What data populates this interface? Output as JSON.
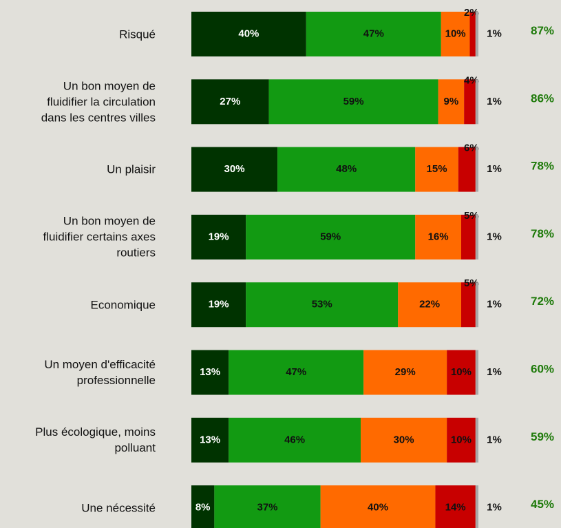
{
  "chart_data": {
    "type": "stacked-bar-horizontal",
    "categories": [
      "Risqué",
      "Un bon moyen de fluidifier la circulation dans les centres villes",
      "Un plaisir",
      "Un bon moyen de fluidifier certains axes routiers",
      "Economique",
      "Un moyen d'efficacité professionnelle",
      "Plus écologique, moins polluant",
      "Une nécessité"
    ],
    "xlim": [
      0,
      100
    ],
    "series": [
      {
        "color": "#003300",
        "values": [
          40,
          27,
          30,
          19,
          19,
          13,
          13,
          8
        ],
        "value_labels": [
          "40%",
          "27%",
          "30%",
          "19%",
          "19%",
          "13%",
          "13%",
          "8%"
        ]
      },
      {
        "color": "#129a12",
        "values": [
          47,
          59,
          48,
          59,
          53,
          47,
          46,
          37
        ],
        "value_labels": [
          "47%",
          "59%",
          "48%",
          "59%",
          "53%",
          "47%",
          "46%",
          "37%"
        ]
      },
      {
        "color": "#ff6a00",
        "values": [
          10,
          9,
          15,
          16,
          22,
          29,
          30,
          40
        ],
        "value_labels": [
          "10%",
          "9%",
          "15%",
          "16%",
          "22%",
          "29%",
          "30%",
          "40%"
        ]
      },
      {
        "color": "#c80000",
        "values": [
          2,
          4,
          6,
          5,
          5,
          10,
          10,
          14
        ],
        "value_labels": [
          "2%",
          "4%",
          "6%",
          "5%",
          "5%",
          "10%",
          "10%",
          "14%"
        ]
      },
      {
        "color": "#a8a8a8",
        "values": [
          1,
          1,
          1,
          1,
          1,
          1,
          1,
          1
        ],
        "value_labels": [
          "1%",
          "1%",
          "1%",
          "1%",
          "1%",
          "1%",
          "1%",
          "1%"
        ]
      }
    ],
    "totals": {
      "color": "#1e7a0a",
      "values": [
        87,
        86,
        78,
        78,
        72,
        60,
        59,
        45
      ],
      "value_labels": [
        "87%",
        "86%",
        "78%",
        "78%",
        "72%",
        "60%",
        "59%",
        "45%"
      ]
    }
  }
}
